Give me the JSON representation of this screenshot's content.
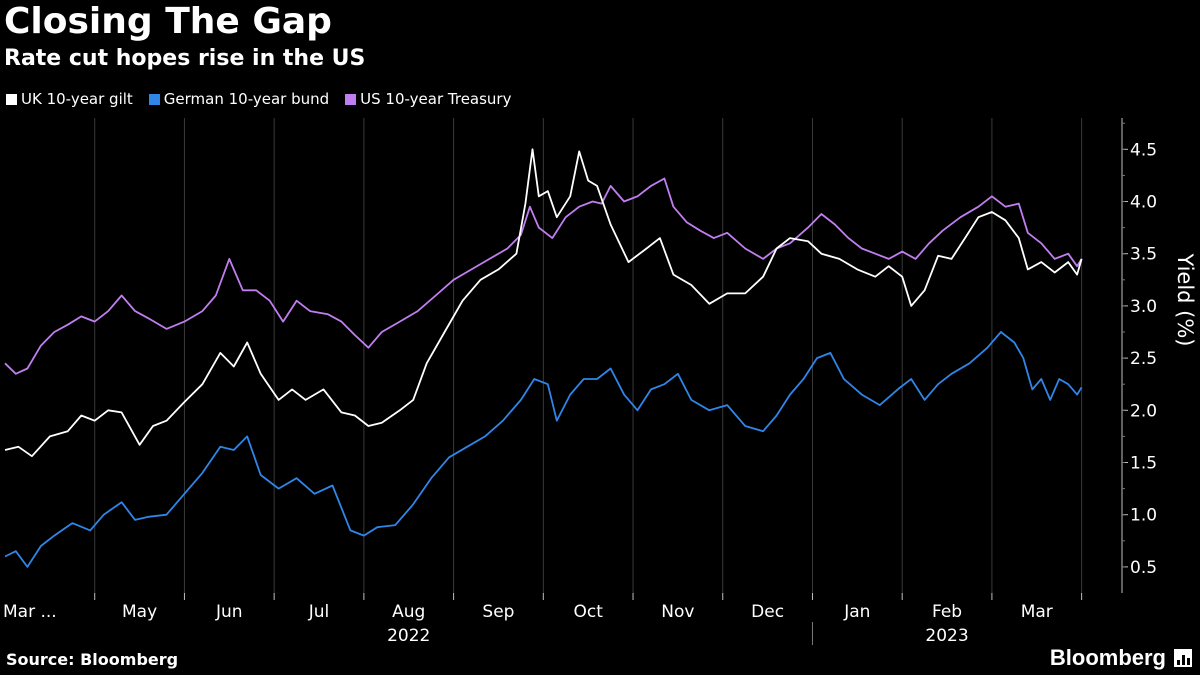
{
  "header": {
    "title": "Closing The Gap",
    "subtitle": "Rate cut hopes rise in the US"
  },
  "footer": {
    "source": "Source: Bloomberg",
    "brand": "Bloomberg"
  },
  "colors": {
    "background": "#000000",
    "grid": "#3a3a3a",
    "text": "#ffffff"
  },
  "chart_data": {
    "type": "line",
    "title": "Closing The Gap",
    "subtitle": "Rate cut hopes rise in the US",
    "xlabel": "",
    "ylabel": "Yield (%)",
    "ylim": [
      0.25,
      4.8
    ],
    "yticks": [
      0.5,
      1.0,
      1.5,
      2.0,
      2.5,
      3.0,
      3.5,
      4.0,
      4.5
    ],
    "ytick_labels": [
      "0.5",
      "1.0",
      "1.5",
      "2.0",
      "2.5",
      "3.0",
      "3.5",
      "4.0",
      "4.5"
    ],
    "x_domain": [
      0,
      12.45
    ],
    "x_ticks": [
      {
        "label": "Mar ...",
        "pos": 0.35
      },
      {
        "label": "May",
        "pos": 1.5
      },
      {
        "label": "Jun",
        "pos": 2.5
      },
      {
        "label": "Jul",
        "pos": 3.5
      },
      {
        "label": "Aug",
        "pos": 4.5
      },
      {
        "label": "Sep",
        "pos": 5.5
      },
      {
        "label": "Oct",
        "pos": 6.5
      },
      {
        "label": "Nov",
        "pos": 7.5
      },
      {
        "label": "Dec",
        "pos": 8.5
      },
      {
        "label": "Jan",
        "pos": 9.5
      },
      {
        "label": "Feb",
        "pos": 10.5
      },
      {
        "label": "Mar",
        "pos": 11.5
      }
    ],
    "x_gridlines": [
      1,
      2,
      3,
      4,
      5,
      6,
      7,
      8,
      9,
      10,
      11,
      12
    ],
    "year_labels": [
      {
        "label": "2022",
        "pos": 4.5
      },
      {
        "label": "2023",
        "pos": 10.5
      }
    ],
    "year_divider": 9.0,
    "legend": {
      "placement": "top-left"
    },
    "series": [
      {
        "name": "UK 10-year gilt",
        "color": "#ffffff",
        "points": [
          [
            0.0,
            1.62
          ],
          [
            0.15,
            1.65
          ],
          [
            0.3,
            1.56
          ],
          [
            0.5,
            1.75
          ],
          [
            0.7,
            1.8
          ],
          [
            0.85,
            1.95
          ],
          [
            1.0,
            1.9
          ],
          [
            1.15,
            2.0
          ],
          [
            1.3,
            1.98
          ],
          [
            1.5,
            1.67
          ],
          [
            1.65,
            1.85
          ],
          [
            1.8,
            1.9
          ],
          [
            2.0,
            2.08
          ],
          [
            2.2,
            2.25
          ],
          [
            2.4,
            2.55
          ],
          [
            2.55,
            2.42
          ],
          [
            2.7,
            2.65
          ],
          [
            2.85,
            2.35
          ],
          [
            3.05,
            2.1
          ],
          [
            3.2,
            2.2
          ],
          [
            3.35,
            2.1
          ],
          [
            3.55,
            2.2
          ],
          [
            3.75,
            1.98
          ],
          [
            3.9,
            1.95
          ],
          [
            4.05,
            1.85
          ],
          [
            4.2,
            1.88
          ],
          [
            4.4,
            2.0
          ],
          [
            4.55,
            2.1
          ],
          [
            4.7,
            2.45
          ],
          [
            4.9,
            2.75
          ],
          [
            5.1,
            3.05
          ],
          [
            5.3,
            3.25
          ],
          [
            5.5,
            3.35
          ],
          [
            5.7,
            3.5
          ],
          [
            5.8,
            3.98
          ],
          [
            5.88,
            4.5
          ],
          [
            5.95,
            4.05
          ],
          [
            6.05,
            4.1
          ],
          [
            6.15,
            3.85
          ],
          [
            6.3,
            4.05
          ],
          [
            6.4,
            4.48
          ],
          [
            6.5,
            4.2
          ],
          [
            6.6,
            4.15
          ],
          [
            6.75,
            3.78
          ],
          [
            6.95,
            3.42
          ],
          [
            7.15,
            3.55
          ],
          [
            7.3,
            3.65
          ],
          [
            7.45,
            3.3
          ],
          [
            7.65,
            3.2
          ],
          [
            7.85,
            3.02
          ],
          [
            8.05,
            3.12
          ],
          [
            8.25,
            3.12
          ],
          [
            8.45,
            3.28
          ],
          [
            8.6,
            3.55
          ],
          [
            8.75,
            3.65
          ],
          [
            8.95,
            3.62
          ],
          [
            9.1,
            3.5
          ],
          [
            9.3,
            3.45
          ],
          [
            9.5,
            3.35
          ],
          [
            9.7,
            3.28
          ],
          [
            9.85,
            3.38
          ],
          [
            10.0,
            3.28
          ],
          [
            10.1,
            3.0
          ],
          [
            10.25,
            3.15
          ],
          [
            10.4,
            3.48
          ],
          [
            10.55,
            3.45
          ],
          [
            10.7,
            3.65
          ],
          [
            10.85,
            3.85
          ],
          [
            11.0,
            3.9
          ],
          [
            11.15,
            3.82
          ],
          [
            11.3,
            3.65
          ],
          [
            11.4,
            3.35
          ],
          [
            11.55,
            3.42
          ],
          [
            11.7,
            3.32
          ],
          [
            11.85,
            3.42
          ],
          [
            11.95,
            3.3
          ],
          [
            12.0,
            3.45
          ]
        ]
      },
      {
        "name": "German 10-year bund",
        "color": "#2f86e8",
        "points": [
          [
            0.0,
            0.6
          ],
          [
            0.12,
            0.65
          ],
          [
            0.25,
            0.5
          ],
          [
            0.4,
            0.7
          ],
          [
            0.55,
            0.8
          ],
          [
            0.75,
            0.92
          ],
          [
            0.95,
            0.85
          ],
          [
            1.1,
            1.0
          ],
          [
            1.3,
            1.12
          ],
          [
            1.45,
            0.95
          ],
          [
            1.6,
            0.98
          ],
          [
            1.8,
            1.0
          ],
          [
            2.0,
            1.2
          ],
          [
            2.2,
            1.4
          ],
          [
            2.4,
            1.65
          ],
          [
            2.55,
            1.62
          ],
          [
            2.7,
            1.75
          ],
          [
            2.85,
            1.38
          ],
          [
            3.05,
            1.25
          ],
          [
            3.25,
            1.35
          ],
          [
            3.45,
            1.2
          ],
          [
            3.65,
            1.28
          ],
          [
            3.85,
            0.85
          ],
          [
            4.0,
            0.8
          ],
          [
            4.15,
            0.88
          ],
          [
            4.35,
            0.9
          ],
          [
            4.55,
            1.1
          ],
          [
            4.75,
            1.35
          ],
          [
            4.95,
            1.55
          ],
          [
            5.15,
            1.65
          ],
          [
            5.35,
            1.75
          ],
          [
            5.55,
            1.9
          ],
          [
            5.75,
            2.1
          ],
          [
            5.9,
            2.3
          ],
          [
            6.05,
            2.25
          ],
          [
            6.15,
            1.9
          ],
          [
            6.3,
            2.15
          ],
          [
            6.45,
            2.3
          ],
          [
            6.6,
            2.3
          ],
          [
            6.75,
            2.4
          ],
          [
            6.9,
            2.15
          ],
          [
            7.05,
            2.0
          ],
          [
            7.2,
            2.2
          ],
          [
            7.35,
            2.25
          ],
          [
            7.5,
            2.35
          ],
          [
            7.65,
            2.1
          ],
          [
            7.85,
            2.0
          ],
          [
            8.05,
            2.05
          ],
          [
            8.25,
            1.85
          ],
          [
            8.45,
            1.8
          ],
          [
            8.6,
            1.95
          ],
          [
            8.75,
            2.15
          ],
          [
            8.9,
            2.3
          ],
          [
            9.05,
            2.5
          ],
          [
            9.2,
            2.55
          ],
          [
            9.35,
            2.3
          ],
          [
            9.55,
            2.15
          ],
          [
            9.75,
            2.05
          ],
          [
            9.95,
            2.2
          ],
          [
            10.1,
            2.3
          ],
          [
            10.25,
            2.1
          ],
          [
            10.4,
            2.25
          ],
          [
            10.55,
            2.35
          ],
          [
            10.75,
            2.45
          ],
          [
            10.95,
            2.6
          ],
          [
            11.1,
            2.75
          ],
          [
            11.25,
            2.65
          ],
          [
            11.35,
            2.5
          ],
          [
            11.45,
            2.2
          ],
          [
            11.55,
            2.3
          ],
          [
            11.65,
            2.1
          ],
          [
            11.75,
            2.3
          ],
          [
            11.85,
            2.25
          ],
          [
            11.95,
            2.15
          ],
          [
            12.0,
            2.22
          ]
        ]
      },
      {
        "name": "US 10-year Treasury",
        "color": "#c17ef0",
        "points": [
          [
            0.0,
            2.45
          ],
          [
            0.12,
            2.35
          ],
          [
            0.25,
            2.4
          ],
          [
            0.4,
            2.62
          ],
          [
            0.55,
            2.75
          ],
          [
            0.7,
            2.82
          ],
          [
            0.85,
            2.9
          ],
          [
            1.0,
            2.85
          ],
          [
            1.15,
            2.95
          ],
          [
            1.3,
            3.1
          ],
          [
            1.45,
            2.95
          ],
          [
            1.6,
            2.88
          ],
          [
            1.8,
            2.78
          ],
          [
            2.0,
            2.85
          ],
          [
            2.2,
            2.95
          ],
          [
            2.35,
            3.1
          ],
          [
            2.5,
            3.45
          ],
          [
            2.65,
            3.15
          ],
          [
            2.8,
            3.15
          ],
          [
            2.95,
            3.05
          ],
          [
            3.1,
            2.85
          ],
          [
            3.25,
            3.05
          ],
          [
            3.4,
            2.95
          ],
          [
            3.6,
            2.92
          ],
          [
            3.75,
            2.85
          ],
          [
            3.9,
            2.72
          ],
          [
            4.05,
            2.6
          ],
          [
            4.2,
            2.75
          ],
          [
            4.4,
            2.85
          ],
          [
            4.6,
            2.95
          ],
          [
            4.8,
            3.1
          ],
          [
            5.0,
            3.25
          ],
          [
            5.2,
            3.35
          ],
          [
            5.4,
            3.45
          ],
          [
            5.6,
            3.55
          ],
          [
            5.75,
            3.68
          ],
          [
            5.85,
            3.95
          ],
          [
            5.95,
            3.75
          ],
          [
            6.1,
            3.65
          ],
          [
            6.25,
            3.85
          ],
          [
            6.4,
            3.95
          ],
          [
            6.55,
            4.0
          ],
          [
            6.65,
            3.98
          ],
          [
            6.75,
            4.15
          ],
          [
            6.9,
            4.0
          ],
          [
            7.05,
            4.05
          ],
          [
            7.2,
            4.15
          ],
          [
            7.35,
            4.22
          ],
          [
            7.45,
            3.95
          ],
          [
            7.6,
            3.8
          ],
          [
            7.75,
            3.72
          ],
          [
            7.9,
            3.65
          ],
          [
            8.05,
            3.7
          ],
          [
            8.25,
            3.55
          ],
          [
            8.45,
            3.45
          ],
          [
            8.6,
            3.55
          ],
          [
            8.75,
            3.6
          ],
          [
            8.95,
            3.75
          ],
          [
            9.1,
            3.88
          ],
          [
            9.25,
            3.78
          ],
          [
            9.4,
            3.65
          ],
          [
            9.55,
            3.55
          ],
          [
            9.7,
            3.5
          ],
          [
            9.85,
            3.45
          ],
          [
            10.0,
            3.52
          ],
          [
            10.15,
            3.45
          ],
          [
            10.3,
            3.6
          ],
          [
            10.45,
            3.72
          ],
          [
            10.65,
            3.85
          ],
          [
            10.85,
            3.95
          ],
          [
            11.0,
            4.05
          ],
          [
            11.15,
            3.95
          ],
          [
            11.3,
            3.98
          ],
          [
            11.4,
            3.7
          ],
          [
            11.55,
            3.6
          ],
          [
            11.7,
            3.45
          ],
          [
            11.85,
            3.5
          ],
          [
            11.95,
            3.38
          ],
          [
            12.0,
            3.45
          ]
        ]
      }
    ]
  }
}
